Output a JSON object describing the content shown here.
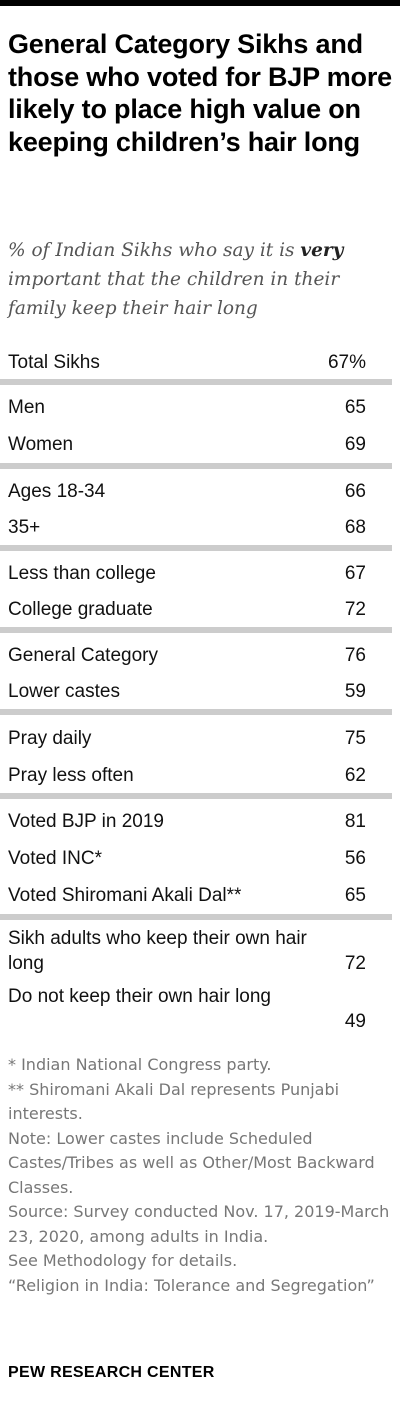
{
  "title": "General Category Sikhs and those who voted for BJP more likely to place high value on keeping children’s hair long",
  "subtitle": {
    "before": "% of Indian Sikhs who say it is ",
    "emphasis": "very",
    "after": " important that the children in their family keep their hair long"
  },
  "chart_data": {
    "type": "table",
    "unit": "%",
    "rows": [
      {
        "label": "Total Sikhs",
        "value": 67,
        "display": "67%"
      },
      {
        "label": "Men",
        "value": 65,
        "display": "65"
      },
      {
        "label": "Women",
        "value": 69,
        "display": "69"
      },
      {
        "label": "Ages 18-34",
        "value": 66,
        "display": "66"
      },
      {
        "label": "35+",
        "value": 68,
        "display": "68"
      },
      {
        "label": "Less than college",
        "value": 67,
        "display": "67"
      },
      {
        "label": "College graduate",
        "value": 72,
        "display": "72"
      },
      {
        "label": "General Category",
        "value": 76,
        "display": "76"
      },
      {
        "label": "Lower castes",
        "value": 59,
        "display": "59"
      },
      {
        "label": "Pray daily",
        "value": 75,
        "display": "75"
      },
      {
        "label": "Pray less often",
        "value": 62,
        "display": "62"
      },
      {
        "label": "Voted BJP in 2019",
        "value": 81,
        "display": "81"
      },
      {
        "label": "Voted INC*",
        "value": 56,
        "display": "56"
      },
      {
        "label": "Voted Shiromani Akali Dal**",
        "value": 65,
        "display": "65"
      },
      {
        "label": "Sikh adults who keep their own hair long",
        "value": 72,
        "display": "72"
      },
      {
        "label": "Do not keep their own hair long",
        "value": 49,
        "display": "49"
      }
    ]
  },
  "notes": [
    "* Indian National Congress party.",
    "** Shiromani Akali Dal represents Punjabi interests.",
    "Note: Lower castes include Scheduled Castes/Tribes as well as Other/Most Backward Classes.",
    "Source: Survey conducted Nov. 17, 2019-March 23, 2020, among adults in India.",
    "See Methodology for details.",
    "“Religion in India: Tolerance and Segregation”"
  ],
  "brand": "PEW RESEARCH CENTER"
}
